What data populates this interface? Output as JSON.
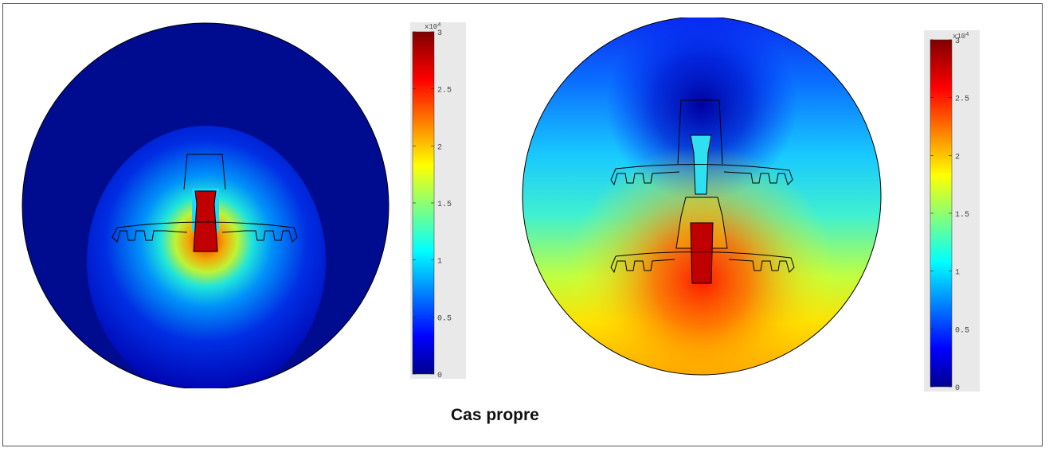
{
  "caption": "Cas propre",
  "colorbar": {
    "multiplier_base": "x10",
    "multiplier_exp": "4",
    "ticks": [
      "3",
      "2.5",
      "2",
      "1.5",
      "1",
      "0.5",
      "0"
    ],
    "tick_values": [
      3,
      2.5,
      2,
      1.5,
      1,
      0.5,
      0
    ],
    "range": [
      0,
      3
    ],
    "colormap": "jet"
  },
  "colors": {
    "jet_low": "#00008f",
    "jet_blue": "#0000ff",
    "jet_cyan": "#00ffff",
    "jet_yellow": "#ffff00",
    "jet_red": "#ff0000",
    "jet_high": "#800000",
    "outline": "#000000"
  },
  "panels": [
    {
      "name": "left",
      "units": "single insulator disc"
    },
    {
      "name": "right",
      "units": "two insulator discs"
    }
  ]
}
